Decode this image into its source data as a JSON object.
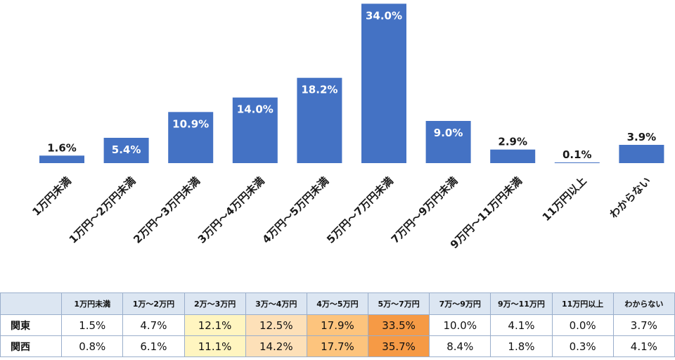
{
  "chart_data": {
    "type": "bar",
    "categories": [
      "1万円未満",
      "1万円～2万円未満",
      "2万円～3万円未満",
      "3万円～4万円未満",
      "4万円～5万円未満",
      "5万円～7万円未満",
      "7万円～9万円未満",
      "9万円～11万円未満",
      "11万円以上",
      "わからない"
    ],
    "values": [
      1.6,
      5.4,
      10.9,
      14.0,
      18.2,
      34.0,
      9.0,
      2.9,
      0.1,
      3.9
    ],
    "data_labels": [
      "1.6%",
      "5.4%",
      "10.9%",
      "14.0%",
      "18.2%",
      "34.0%",
      "9.0%",
      "2.9%",
      "0.1%",
      "3.9%"
    ],
    "ylim": [
      0,
      34.8
    ],
    "grid": false,
    "bar_color": "#4472c4"
  },
  "table": {
    "headers": [
      "",
      "1万円未満",
      "1万～2万円",
      "2万～3万円",
      "3万～4万円",
      "4万～5万円",
      "5万～7万円",
      "7万～9万円",
      "9万～11万円",
      "11万円以上",
      "わからない"
    ],
    "rows": [
      {
        "region": "関東",
        "values": [
          "1.5%",
          "4.7%",
          "12.1%",
          "12.5%",
          "17.9%",
          "33.5%",
          "10.0%",
          "4.1%",
          "0.0%",
          "3.7%"
        ]
      },
      {
        "region": "関西",
        "values": [
          "0.8%",
          "6.1%",
          "11.1%",
          "14.2%",
          "17.7%",
          "35.7%",
          "8.4%",
          "1.8%",
          "0.3%",
          "4.1%"
        ]
      }
    ],
    "header_bg": "#dce6f2",
    "highlight_colors": [
      "#fff5c0",
      "#fde0b8",
      "#fdc47d",
      "#f69a45"
    ]
  }
}
